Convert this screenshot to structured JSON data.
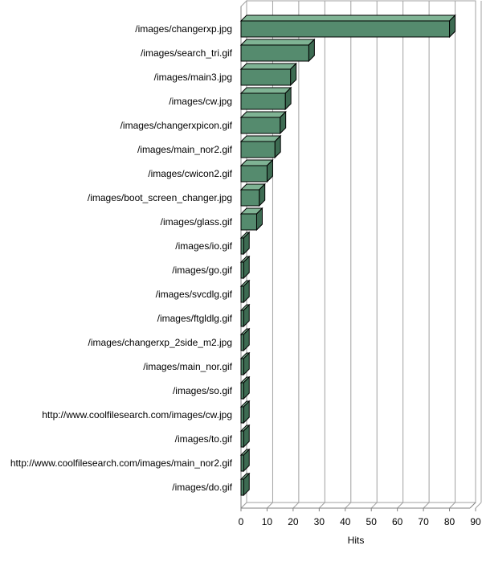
{
  "chart_data": {
    "type": "bar",
    "orientation": "horizontal",
    "categories": [
      "/images/changerxp.jpg",
      "/images/search_tri.gif",
      "/images/main3.jpg",
      "/images/cw.jpg",
      "/images/changerxpicon.gif",
      "/images/main_nor2.gif",
      "/images/cwicon2.gif",
      "/images/boot_screen_changer.jpg",
      "/images/glass.gif",
      "/images/io.gif",
      "/images/go.gif",
      "/images/svcdlg.gif",
      "/images/ftgldlg.gif",
      "/images/changerxp_2side_m2.jpg",
      "/images/main_nor.gif",
      "/images/so.gif",
      "http://www.coolfilesearch.com/images/cw.jpg",
      "/images/to.gif",
      "http://www.coolfilesearch.com/images/main_nor2.gif",
      "/images/do.gif"
    ],
    "values": [
      80,
      26,
      19,
      17,
      15,
      13,
      10,
      7,
      6,
      1,
      1,
      1,
      1,
      1,
      1,
      1,
      1,
      1,
      1,
      1
    ],
    "xlabel": "Hits",
    "ylabel": "",
    "title": "",
    "xlim": [
      0,
      90
    ],
    "xticks": [
      0,
      10,
      20,
      30,
      40,
      50,
      60,
      70,
      80,
      90
    ],
    "grid": true,
    "legend": "none",
    "colors": {
      "bar_front": "#558b6e",
      "bar_top": "#7fb394",
      "bar_side": "#3d6b52",
      "bar_edge": "#000000",
      "grid": "#a0a0a0",
      "wall": "#ffffff"
    }
  }
}
